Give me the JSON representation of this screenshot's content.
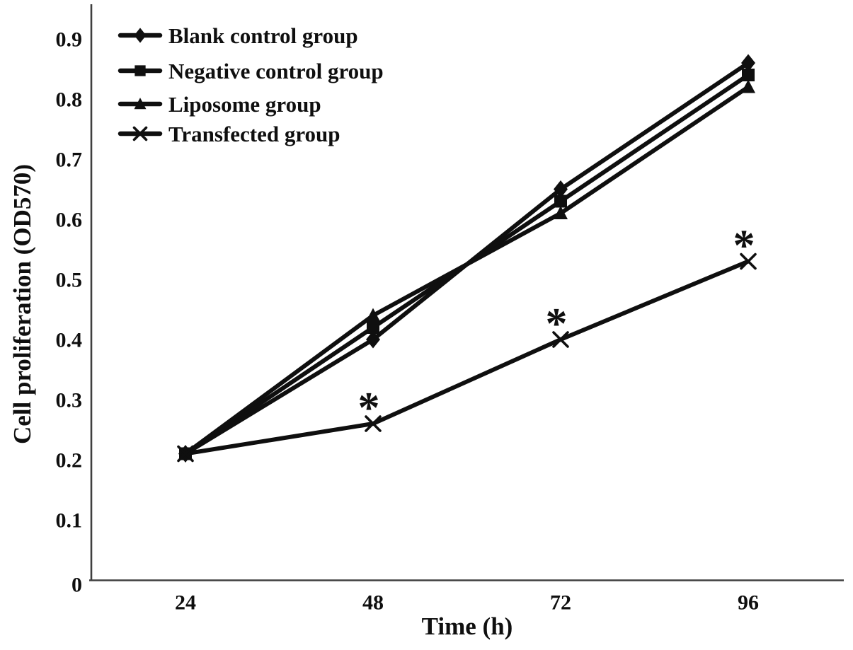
{
  "chart_data": {
    "type": "line",
    "title": "",
    "xlabel": "Time (h)",
    "ylabel": "Cell proliferation (OD570)",
    "x": [
      24,
      48,
      72,
      96
    ],
    "x_tick_labels": [
      "24",
      "48",
      "72",
      "96"
    ],
    "y_ticks": [
      0,
      0.1,
      0.2,
      0.3,
      0.4,
      0.5,
      0.6,
      0.7,
      0.8,
      0.9
    ],
    "y_tick_labels": [
      "0",
      "0.1",
      "0.2",
      "0.3",
      "0.4",
      "0.5",
      "0.6",
      "0.7",
      "0.8",
      "0.9"
    ],
    "ylim": [
      0,
      0.9
    ],
    "grid": false,
    "legend_position": "top-left",
    "line_color": "#0f0f0f",
    "axis_color": "#3f3f3f",
    "series": [
      {
        "name": "Blank control group",
        "marker": "diamond",
        "values": [
          0.21,
          0.4,
          0.65,
          0.86
        ]
      },
      {
        "name": "Negative control group",
        "marker": "square",
        "values": [
          0.21,
          0.42,
          0.63,
          0.84
        ]
      },
      {
        "name": "Liposome group",
        "marker": "triangle",
        "values": [
          0.21,
          0.44,
          0.61,
          0.82
        ]
      },
      {
        "name": "Transfected group",
        "marker": "x",
        "values": [
          0.21,
          0.26,
          0.4,
          0.53
        ]
      }
    ],
    "annotations": [
      {
        "x": 48,
        "y": 0.26,
        "text": "*"
      },
      {
        "x": 72,
        "y": 0.4,
        "text": "*"
      },
      {
        "x": 96,
        "y": 0.53,
        "text": "*"
      }
    ]
  }
}
